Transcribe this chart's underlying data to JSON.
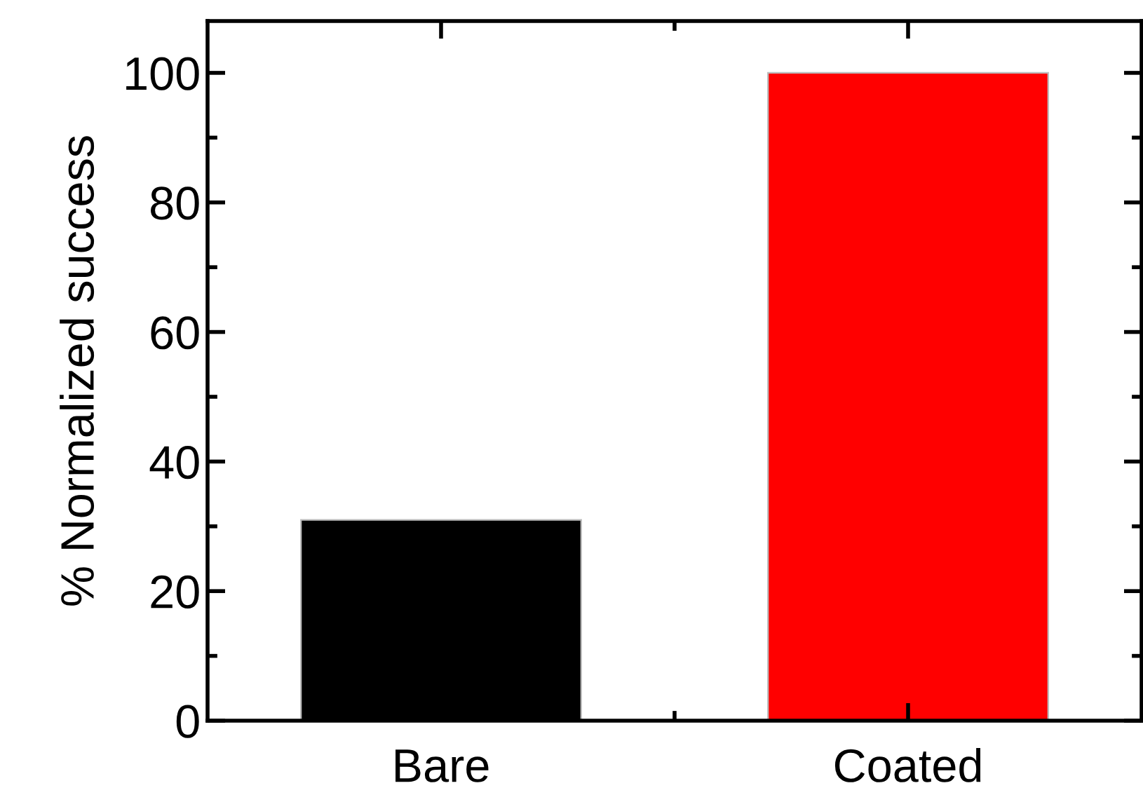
{
  "chart_data": {
    "type": "bar",
    "ylabel": "% Normalized success",
    "categories": [
      "Bare",
      "Coated"
    ],
    "values": [
      31,
      100
    ],
    "colors": [
      "#000000",
      "#ff0000"
    ],
    "ylim": [
      0,
      108
    ],
    "yticks": [
      0,
      20,
      40,
      60,
      80,
      100
    ],
    "grid": false,
    "legend": false
  }
}
